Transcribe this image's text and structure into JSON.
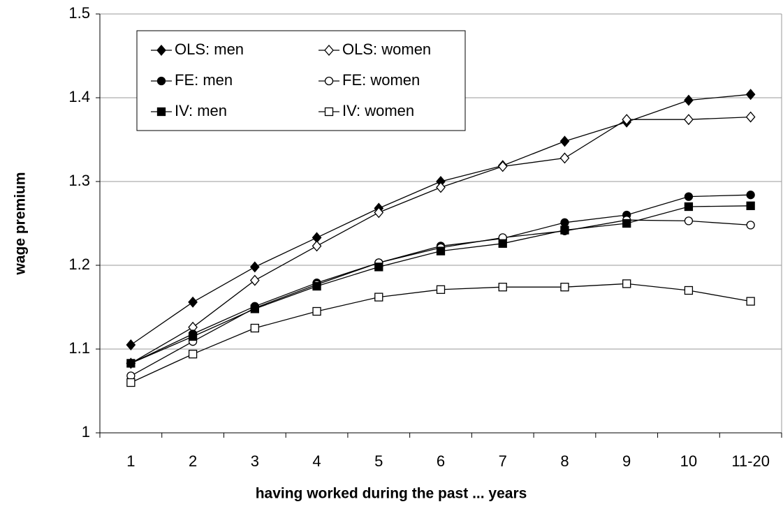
{
  "chart_data": {
    "type": "line",
    "x_label": "having worked during the past ... years",
    "y_label": "wage premium",
    "categories": [
      "1",
      "2",
      "3",
      "4",
      "5",
      "6",
      "7",
      "8",
      "9",
      "10",
      "11-20"
    ],
    "ylim": [
      1,
      1.5
    ],
    "yticks": [
      1,
      1.1,
      1.2,
      1.3,
      1.4,
      1.5
    ],
    "grid": true,
    "legend": "top-left",
    "series": [
      {
        "name": "OLS: men",
        "color": "#000000",
        "marker": "diamond",
        "filled": true,
        "values": [
          1.105,
          1.156,
          1.198,
          1.233,
          1.268,
          1.3,
          1.319,
          1.348,
          1.371,
          1.397,
          1.404
        ]
      },
      {
        "name": "OLS: women",
        "color": "#000000",
        "marker": "diamond",
        "filled": false,
        "values": [
          1.083,
          1.126,
          1.182,
          1.223,
          1.263,
          1.293,
          1.318,
          1.328,
          1.374,
          1.374,
          1.377
        ]
      },
      {
        "name": "FE: men",
        "color": "#000000",
        "marker": "circle",
        "filled": true,
        "values": [
          1.083,
          1.118,
          1.151,
          1.179,
          1.203,
          1.223,
          1.232,
          1.251,
          1.26,
          1.282,
          1.284
        ]
      },
      {
        "name": "FE: women",
        "color": "#000000",
        "marker": "circle",
        "filled": false,
        "values": [
          1.068,
          1.109,
          1.149,
          1.177,
          1.203,
          1.221,
          1.233,
          1.241,
          1.254,
          1.253,
          1.248
        ]
      },
      {
        "name": "IV: men",
        "color": "#000000",
        "marker": "square",
        "filled": true,
        "values": [
          1.083,
          1.115,
          1.148,
          1.175,
          1.198,
          1.217,
          1.226,
          1.242,
          1.25,
          1.27,
          1.271
        ]
      },
      {
        "name": "IV: women",
        "color": "#000000",
        "marker": "square",
        "filled": false,
        "values": [
          1.06,
          1.094,
          1.125,
          1.145,
          1.162,
          1.171,
          1.174,
          1.174,
          1.178,
          1.17,
          1.157
        ]
      }
    ]
  }
}
